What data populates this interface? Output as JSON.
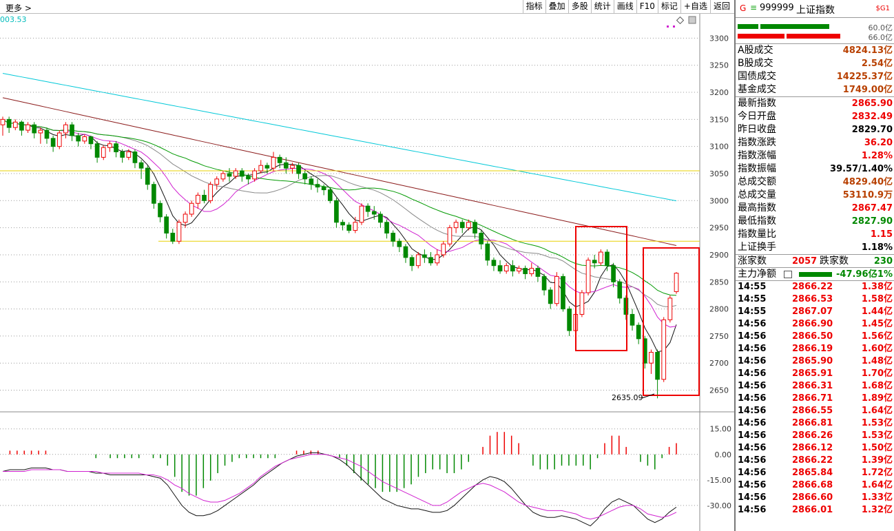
{
  "header": {
    "more": "更多 >",
    "toolbar": [
      "指标",
      "叠加",
      "多股",
      "统计",
      "画线",
      "F10",
      "标记",
      "+自选",
      "返回"
    ],
    "ma_readout": "003.53"
  },
  "chart_data": {
    "type": "candlestick",
    "title": "",
    "price_axis": {
      "ylim": [
        2610,
        3345
      ],
      "ticks": [
        3300,
        3250,
        3200,
        3150,
        3100,
        3050,
        3000,
        2950,
        2900,
        2850,
        2800,
        2750,
        2700,
        2650
      ]
    },
    "annotation_low": "2635.09",
    "horizontal_lines": [
      3055,
      2925
    ],
    "highlight_boxes": 2,
    "candles": [
      [
        3140,
        3150,
        3120,
        3155
      ],
      [
        3150,
        3135,
        3125,
        3155
      ],
      [
        3135,
        3145,
        3130,
        3150
      ],
      [
        3145,
        3130,
        3120,
        3148
      ],
      [
        3130,
        3140,
        3125,
        3145
      ],
      [
        3140,
        3125,
        3115,
        3145
      ],
      [
        3125,
        3130,
        3105,
        3135
      ],
      [
        3130,
        3115,
        3105,
        3135
      ],
      [
        3115,
        3100,
        3090,
        3120
      ],
      [
        3100,
        3125,
        3095,
        3130
      ],
      [
        3125,
        3140,
        3115,
        3145
      ],
      [
        3140,
        3120,
        3110,
        3145
      ],
      [
        3120,
        3110,
        3100,
        3125
      ],
      [
        3110,
        3118,
        3105,
        3122
      ],
      [
        3118,
        3105,
        3095,
        3120
      ],
      [
        3105,
        3080,
        3070,
        3110
      ],
      [
        3080,
        3098,
        3075,
        3102
      ],
      [
        3098,
        3105,
        3090,
        3110
      ],
      [
        3105,
        3090,
        3080,
        3110
      ],
      [
        3090,
        3080,
        3070,
        3095
      ],
      [
        3080,
        3090,
        3075,
        3095
      ],
      [
        3090,
        3070,
        3060,
        3095
      ],
      [
        3070,
        3060,
        3040,
        3075
      ],
      [
        3060,
        3030,
        3020,
        3065
      ],
      [
        3030,
        2995,
        2985,
        3035
      ],
      [
        2995,
        2970,
        2960,
        3000
      ],
      [
        2970,
        2940,
        2930,
        2975
      ],
      [
        2940,
        2925,
        2920,
        2948
      ],
      [
        2925,
        2960,
        2920,
        2965
      ],
      [
        2960,
        2975,
        2950,
        2980
      ],
      [
        2975,
        2995,
        2970,
        3000
      ],
      [
        2995,
        3010,
        2985,
        3015
      ],
      [
        3010,
        3000,
        2995,
        3020
      ],
      [
        3000,
        3030,
        2995,
        3035
      ],
      [
        3030,
        3040,
        3020,
        3045
      ],
      [
        3040,
        3050,
        3035,
        3055
      ],
      [
        3050,
        3045,
        3035,
        3060
      ],
      [
        3045,
        3055,
        3040,
        3060
      ],
      [
        3055,
        3045,
        3035,
        3060
      ],
      [
        3045,
        3040,
        3030,
        3050
      ],
      [
        3040,
        3055,
        3035,
        3060
      ],
      [
        3055,
        3065,
        3050,
        3075
      ],
      [
        3065,
        3060,
        3050,
        3070
      ],
      [
        3060,
        3080,
        3055,
        3090
      ],
      [
        3080,
        3070,
        3060,
        3085
      ],
      [
        3070,
        3060,
        3050,
        3080
      ],
      [
        3060,
        3065,
        3050,
        3070
      ],
      [
        3065,
        3050,
        3040,
        3070
      ],
      [
        3050,
        3040,
        3030,
        3055
      ],
      [
        3040,
        3030,
        3020,
        3045
      ],
      [
        3030,
        3025,
        3015,
        3040
      ],
      [
        3025,
        3020,
        3010,
        3030
      ],
      [
        3020,
        3000,
        2995,
        3025
      ],
      [
        3000,
        2960,
        2950,
        3005
      ],
      [
        2960,
        2955,
        2945,
        2965
      ],
      [
        2955,
        2945,
        2940,
        2960
      ],
      [
        2945,
        2960,
        2940,
        2970
      ],
      [
        2960,
        2990,
        2955,
        2995
      ],
      [
        2990,
        2980,
        2970,
        2995
      ],
      [
        2980,
        2975,
        2965,
        2990
      ],
      [
        2975,
        2960,
        2950,
        2980
      ],
      [
        2960,
        2940,
        2930,
        2965
      ],
      [
        2940,
        2925,
        2915,
        2945
      ],
      [
        2925,
        2915,
        2905,
        2930
      ],
      [
        2915,
        2895,
        2885,
        2920
      ],
      [
        2895,
        2880,
        2870,
        2900
      ],
      [
        2880,
        2900,
        2875,
        2905
      ],
      [
        2900,
        2895,
        2885,
        2910
      ],
      [
        2895,
        2885,
        2880,
        2905
      ],
      [
        2885,
        2900,
        2880,
        2910
      ],
      [
        2900,
        2920,
        2895,
        2925
      ],
      [
        2920,
        2950,
        2915,
        2955
      ],
      [
        2950,
        2960,
        2940,
        2965
      ],
      [
        2960,
        2950,
        2940,
        2965
      ],
      [
        2950,
        2960,
        2945,
        2965
      ],
      [
        2960,
        2940,
        2930,
        2965
      ],
      [
        2940,
        2920,
        2910,
        2945
      ],
      [
        2920,
        2890,
        2880,
        2925
      ],
      [
        2890,
        2880,
        2870,
        2895
      ],
      [
        2880,
        2870,
        2865,
        2890
      ],
      [
        2870,
        2880,
        2865,
        2885
      ],
      [
        2880,
        2870,
        2860,
        2890
      ],
      [
        2870,
        2875,
        2865,
        2880
      ],
      [
        2875,
        2865,
        2855,
        2880
      ],
      [
        2865,
        2875,
        2860,
        2885
      ],
      [
        2875,
        2860,
        2850,
        2880
      ],
      [
        2860,
        2835,
        2825,
        2865
      ],
      [
        2835,
        2810,
        2800,
        2840
      ],
      [
        2810,
        2860,
        2805,
        2868
      ],
      [
        2860,
        2800,
        2795,
        2865
      ],
      [
        2800,
        2760,
        2750,
        2805
      ],
      [
        2760,
        2790,
        2755,
        2795
      ],
      [
        2790,
        2830,
        2785,
        2835
      ],
      [
        2830,
        2890,
        2825,
        2895
      ],
      [
        2890,
        2885,
        2875,
        2900
      ],
      [
        2885,
        2905,
        2880,
        2910
      ],
      [
        2905,
        2880,
        2870,
        2910
      ],
      [
        2880,
        2850,
        2840,
        2885
      ],
      [
        2850,
        2820,
        2810,
        2855
      ],
      [
        2820,
        2790,
        2780,
        2825
      ],
      [
        2790,
        2770,
        2760,
        2800
      ],
      [
        2770,
        2745,
        2735,
        2775
      ],
      [
        2745,
        2700,
        2690,
        2750
      ],
      [
        2700,
        2720,
        2680,
        2725
      ],
      [
        2720,
        2670,
        2635,
        2725
      ],
      [
        2670,
        2780,
        2665,
        2785
      ],
      [
        2780,
        2820,
        2775,
        2825
      ],
      [
        2832,
        2866,
        2828,
        2868
      ]
    ],
    "macd": {
      "ylim": [
        -45,
        25
      ],
      "ticks": [
        "15.00",
        "0.00",
        "-15.00",
        "-30.00"
      ],
      "dif": [
        -10,
        -9,
        -9,
        -9,
        -8,
        -8,
        -8,
        -9,
        -9,
        -10,
        -10,
        -10,
        -10,
        -11,
        -11,
        -12,
        -12,
        -12,
        -12,
        -12,
        -12,
        -13,
        -14,
        -18,
        -24,
        -30,
        -34,
        -36,
        -36,
        -35,
        -33,
        -30,
        -27,
        -24,
        -21,
        -18,
        -14,
        -11,
        -8,
        -5,
        -3,
        -1,
        0,
        1,
        1,
        0,
        -1,
        -3,
        -6,
        -10,
        -14,
        -18,
        -22,
        -26,
        -28,
        -30,
        -31,
        -32,
        -32,
        -33,
        -34,
        -34,
        -33,
        -30,
        -26,
        -22,
        -18,
        -15,
        -13,
        -14,
        -16,
        -20,
        -25,
        -30,
        -34,
        -36,
        -37,
        -37,
        -36,
        -37,
        -38,
        -40,
        -42,
        -38,
        -32,
        -28,
        -26,
        -28,
        -30,
        -34,
        -38,
        -40,
        -38,
        -34,
        -31
      ],
      "dea": [
        -10,
        -10,
        -10,
        -10,
        -9,
        -9,
        -9,
        -9,
        -9,
        -10,
        -10,
        -10,
        -10,
        -10,
        -11,
        -11,
        -11,
        -11,
        -11,
        -11,
        -12,
        -12,
        -13,
        -15,
        -18,
        -20,
        -23,
        -25,
        -27,
        -28,
        -28,
        -27,
        -25,
        -23,
        -20,
        -17,
        -13,
        -10,
        -7,
        -5,
        -3,
        -2,
        -1,
        0,
        0,
        0,
        -1,
        -2,
        -3,
        -5,
        -7,
        -10,
        -13,
        -16,
        -18,
        -20,
        -22,
        -24,
        -26,
        -28,
        -30,
        -30,
        -28,
        -25,
        -22,
        -20,
        -18,
        -17,
        -18,
        -20,
        -22,
        -25,
        -28,
        -30,
        -31,
        -32,
        -33,
        -33,
        -33,
        -34,
        -35,
        -37,
        -38,
        -37,
        -35,
        -33,
        -31,
        -30,
        -30,
        -32,
        -35,
        -36,
        -37,
        -36,
        -34
      ]
    }
  },
  "panel": {
    "g": "G",
    "eq": "≡",
    "code": "999999",
    "name": "上证指数",
    "sg": "$G1",
    "bar_vals": [
      "60.0亿",
      "66.0亿"
    ],
    "s1": [
      [
        "A股成交",
        "4824.13亿",
        "brown"
      ],
      [
        "B股成交",
        "2.54亿",
        "brown"
      ],
      [
        "国债成交",
        "14225.37亿",
        "brown"
      ],
      [
        "基金成交",
        "1749.00亿",
        "brown"
      ]
    ],
    "s2": [
      [
        "最新指数",
        "2865.90",
        "red"
      ],
      [
        "今日开盘",
        "2832.49",
        "red"
      ],
      [
        "昨日收盘",
        "2829.70",
        "black"
      ],
      [
        "指数涨跌",
        "36.20",
        "red"
      ],
      [
        "指数涨幅",
        "1.28%",
        "red"
      ],
      [
        "指数振幅",
        "39.57/1.40%",
        "black"
      ],
      [
        "总成交额",
        "4829.40亿",
        "brown"
      ],
      [
        "总成交量",
        "53110.9万",
        "brown"
      ],
      [
        "最高指数",
        "2867.47",
        "red"
      ],
      [
        "最低指数",
        "2827.90",
        "green"
      ],
      [
        "指数量比",
        "1.15",
        "red"
      ],
      [
        "上证换手",
        "1.18%",
        "black"
      ]
    ],
    "zd": {
      "k1": "涨家数",
      "v1": "2057",
      "k2": "跌家数",
      "v2": "230"
    },
    "zl": {
      "k": "主力净额",
      "v1": "-47.96亿",
      "v2": "-1%"
    },
    "ticks": [
      [
        "14:55",
        "2866.22",
        "1.38亿"
      ],
      [
        "14:55",
        "2866.53",
        "1.58亿"
      ],
      [
        "14:55",
        "2867.07",
        "1.44亿"
      ],
      [
        "14:56",
        "2866.90",
        "1.45亿"
      ],
      [
        "14:56",
        "2866.50",
        "1.56亿"
      ],
      [
        "14:56",
        "2866.19",
        "1.60亿"
      ],
      [
        "14:56",
        "2865.90",
        "1.48亿"
      ],
      [
        "14:56",
        "2865.91",
        "1.70亿"
      ],
      [
        "14:56",
        "2866.31",
        "1.68亿"
      ],
      [
        "14:56",
        "2866.71",
        "1.89亿"
      ],
      [
        "14:56",
        "2866.55",
        "1.64亿"
      ],
      [
        "14:56",
        "2866.81",
        "1.53亿"
      ],
      [
        "14:56",
        "2866.26",
        "1.53亿"
      ],
      [
        "14:56",
        "2866.12",
        "1.50亿"
      ],
      [
        "14:56",
        "2866.22",
        "1.39亿"
      ],
      [
        "14:56",
        "2865.84",
        "1.72亿"
      ],
      [
        "14:56",
        "2866.68",
        "1.64亿"
      ],
      [
        "14:56",
        "2866.60",
        "1.33亿"
      ],
      [
        "14:56",
        "2866.01",
        "1.32亿"
      ]
    ]
  }
}
